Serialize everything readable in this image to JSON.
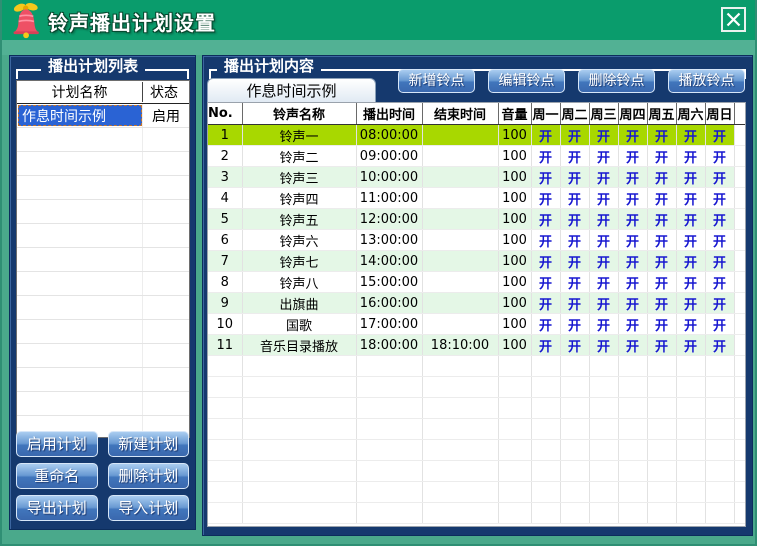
{
  "window": {
    "title": "铃声播出计划设置"
  },
  "plan_list": {
    "group_title": "播出计划列表",
    "columns": [
      "计划名称",
      "状态"
    ],
    "rows": [
      {
        "name": "作息时间示例",
        "status": "启用",
        "selected": true
      }
    ],
    "buttons": [
      "启用计划",
      "新建计划",
      "重命名",
      "删除计划",
      "导出计划",
      "导入计划"
    ]
  },
  "plan_content": {
    "group_title": "播出计划内容",
    "tab": "作息时间示例",
    "buttons": [
      "新增铃点",
      "编辑铃点",
      "删除铃点",
      "播放铃点"
    ],
    "table": {
      "columns": [
        "No.",
        "铃声名称",
        "播出时间",
        "结束时间",
        "音量",
        "周一",
        "周二",
        "周三",
        "周四",
        "周五",
        "周六",
        "周日"
      ],
      "rows": [
        {
          "no": "1",
          "name": "铃声一",
          "start": "08:00:00",
          "end": "",
          "volume": "100",
          "days": [
            "开",
            "开",
            "开",
            "开",
            "开",
            "开",
            "开"
          ]
        },
        {
          "no": "2",
          "name": "铃声二",
          "start": "09:00:00",
          "end": "",
          "volume": "100",
          "days": [
            "开",
            "开",
            "开",
            "开",
            "开",
            "开",
            "开"
          ]
        },
        {
          "no": "3",
          "name": "铃声三",
          "start": "10:00:00",
          "end": "",
          "volume": "100",
          "days": [
            "开",
            "开",
            "开",
            "开",
            "开",
            "开",
            "开"
          ]
        },
        {
          "no": "4",
          "name": "铃声四",
          "start": "11:00:00",
          "end": "",
          "volume": "100",
          "days": [
            "开",
            "开",
            "开",
            "开",
            "开",
            "开",
            "开"
          ]
        },
        {
          "no": "5",
          "name": "铃声五",
          "start": "12:00:00",
          "end": "",
          "volume": "100",
          "days": [
            "开",
            "开",
            "开",
            "开",
            "开",
            "开",
            "开"
          ]
        },
        {
          "no": "6",
          "name": "铃声六",
          "start": "13:00:00",
          "end": "",
          "volume": "100",
          "days": [
            "开",
            "开",
            "开",
            "开",
            "开",
            "开",
            "开"
          ]
        },
        {
          "no": "7",
          "name": "铃声七",
          "start": "14:00:00",
          "end": "",
          "volume": "100",
          "days": [
            "开",
            "开",
            "开",
            "开",
            "开",
            "开",
            "开"
          ]
        },
        {
          "no": "8",
          "name": "铃声八",
          "start": "15:00:00",
          "end": "",
          "volume": "100",
          "days": [
            "开",
            "开",
            "开",
            "开",
            "开",
            "开",
            "开"
          ]
        },
        {
          "no": "9",
          "name": "出旗曲",
          "start": "16:00:00",
          "end": "",
          "volume": "100",
          "days": [
            "开",
            "开",
            "开",
            "开",
            "开",
            "开",
            "开"
          ]
        },
        {
          "no": "10",
          "name": "国歌",
          "start": "17:00:00",
          "end": "",
          "volume": "100",
          "days": [
            "开",
            "开",
            "开",
            "开",
            "开",
            "开",
            "开"
          ]
        },
        {
          "no": "11",
          "name": "音乐目录播放",
          "start": "18:00:00",
          "end": "18:10:00",
          "volume": "100",
          "days": [
            "开",
            "开",
            "开",
            "开",
            "开",
            "开",
            "开"
          ]
        }
      ]
    }
  },
  "colors": {
    "title_bar": "#0a9c6c",
    "strip": "#52b194",
    "background": "#4aa98b",
    "panel": "#15396e",
    "panel_border": "#0c2d5c",
    "button_top": "#aacdf0",
    "button_mid": "#6899d2",
    "button_bottom": "#4176bc",
    "button_border": "#d6e6f8",
    "selected_row": "#a8d800",
    "alt_row": "#e4f7e6",
    "day_on": "#1616d0",
    "selected_item": "#2a63d4",
    "tab_top": "#ffffff",
    "tab_bottom": "#dfe9f3"
  }
}
